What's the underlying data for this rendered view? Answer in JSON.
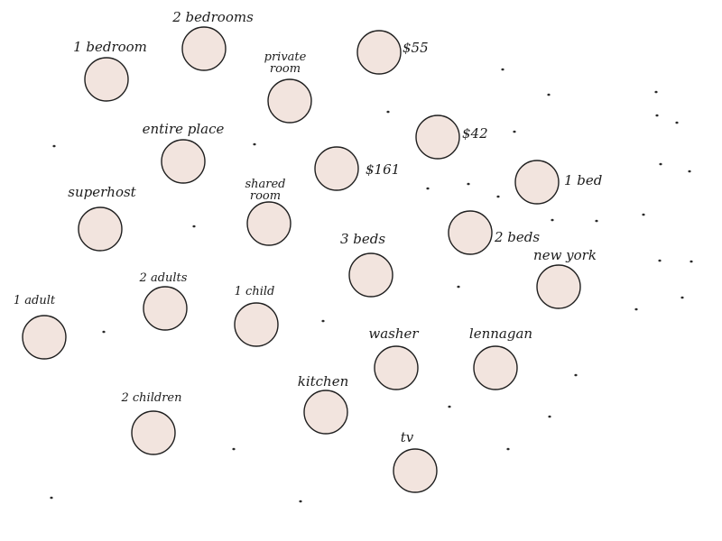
{
  "colors": {
    "node_fill": "#f2e4de",
    "node_stroke": "#1f1f1f",
    "label": "#1c1c1c"
  },
  "nodes": [
    {
      "id": "1-bedroom",
      "label": [
        "1 bedroom"
      ]
    },
    {
      "id": "2-bedrooms",
      "label": [
        "2 bedrooms"
      ]
    },
    {
      "id": "private-room",
      "label": [
        "private",
        "room"
      ]
    },
    {
      "id": "price-55",
      "label": [
        "$55"
      ]
    },
    {
      "id": "price-42",
      "label": [
        "$42"
      ]
    },
    {
      "id": "entire-place",
      "label": [
        "entire place"
      ]
    },
    {
      "id": "price-161",
      "label": [
        "$161"
      ]
    },
    {
      "id": "1-bed",
      "label": [
        "1 bed"
      ]
    },
    {
      "id": "superhost",
      "label": [
        "superhost"
      ]
    },
    {
      "id": "shared-room",
      "label": [
        "shared",
        "room"
      ]
    },
    {
      "id": "3-beds",
      "label": [
        "3 beds"
      ]
    },
    {
      "id": "2-beds",
      "label": [
        "2 beds"
      ]
    },
    {
      "id": "new-york",
      "label": [
        "new york"
      ]
    },
    {
      "id": "2-adults",
      "label": [
        "2 adults"
      ]
    },
    {
      "id": "1-child",
      "label": [
        "1 child"
      ]
    },
    {
      "id": "1-adult",
      "label": [
        "1 adult"
      ]
    },
    {
      "id": "washer",
      "label": [
        "washer"
      ]
    },
    {
      "id": "lennagan",
      "label": [
        "lennagan"
      ]
    },
    {
      "id": "kitchen",
      "label": [
        "kitchen"
      ]
    },
    {
      "id": "2-children",
      "label": [
        "2 children"
      ]
    },
    {
      "id": "tv",
      "label": [
        "tv"
      ]
    }
  ]
}
